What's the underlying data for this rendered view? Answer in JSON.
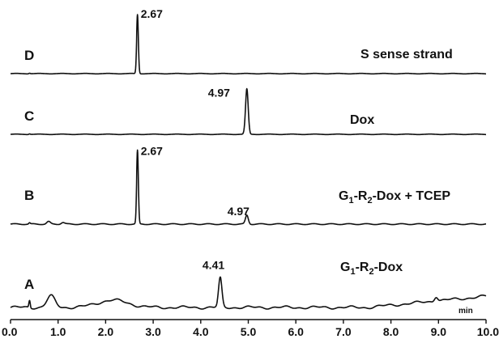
{
  "chart_data": {
    "type": "line",
    "title": "",
    "xlabel": "min",
    "ylabel": "",
    "xlim": [
      0,
      10
    ],
    "x_ticks": [
      0.0,
      1.0,
      2.0,
      3.0,
      4.0,
      5.0,
      6.0,
      7.0,
      8.0,
      9.0,
      10.0
    ],
    "x_tick_labels": [
      "0.0",
      "1.0",
      "2.0",
      "3.0",
      "4.0",
      "5.0",
      "6.0",
      "7.0",
      "8.0",
      "9.0",
      "10.0"
    ],
    "grid": false,
    "legend": "none",
    "series": [
      {
        "letter": "D",
        "name_text": "S sense strand",
        "peaks": [
          {
            "x": 2.67,
            "label": "2.67",
            "height": 1.0
          }
        ]
      },
      {
        "letter": "C",
        "name_text": "Dox",
        "peaks": [
          {
            "x": 4.97,
            "label": "4.97",
            "height": 0.85
          }
        ]
      },
      {
        "letter": "B",
        "name_text": "G1-R2-Dox + TCEP",
        "name_parts": [
          "G",
          "1",
          "-R",
          "2",
          "-Dox + TCEP"
        ],
        "peaks": [
          {
            "x": 2.67,
            "label": "2.67",
            "height": 1.0
          },
          {
            "x": 4.97,
            "label": "4.97",
            "height": 0.12
          }
        ]
      },
      {
        "letter": "A",
        "name_text": "G1-R2-Dox",
        "name_parts": [
          "G",
          "1",
          "-R",
          "2",
          "-Dox"
        ],
        "peaks": [
          {
            "x": 4.41,
            "label": "4.41",
            "height": 0.6
          }
        ]
      }
    ]
  }
}
